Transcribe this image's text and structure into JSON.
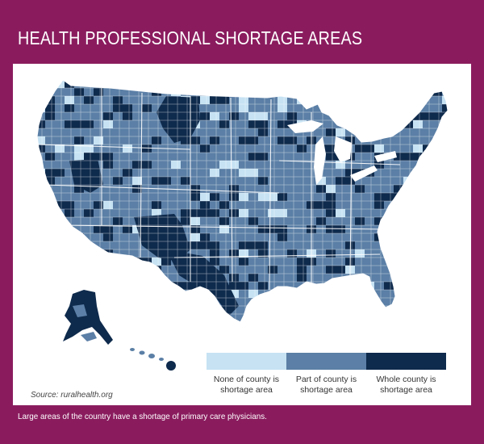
{
  "title": "HEALTH PROFESSIONAL SHORTAGE AREAS",
  "source": "Source: ruralhealth.org",
  "caption": "Large areas of the country have a shortage of primary care physicians.",
  "colors": {
    "frame": "#8a1c5e",
    "none": "#c6e2f3",
    "part": "#5b7fa6",
    "whole": "#0e2a4c",
    "borders": "#ffffff"
  },
  "legend": [
    {
      "label_line1": "None of county is",
      "label_line2": "shortage area",
      "color": "#c6e2f3"
    },
    {
      "label_line1": "Part of county is",
      "label_line2": "shortage area",
      "color": "#5b7fa6"
    },
    {
      "label_line1": "Whole county is",
      "label_line2": "shortage area",
      "color": "#0e2a4c"
    }
  ],
  "map": {
    "subject": "United States counties by health professional shortage area status",
    "regions": [
      "contiguous-us",
      "alaska",
      "hawaii"
    ]
  }
}
